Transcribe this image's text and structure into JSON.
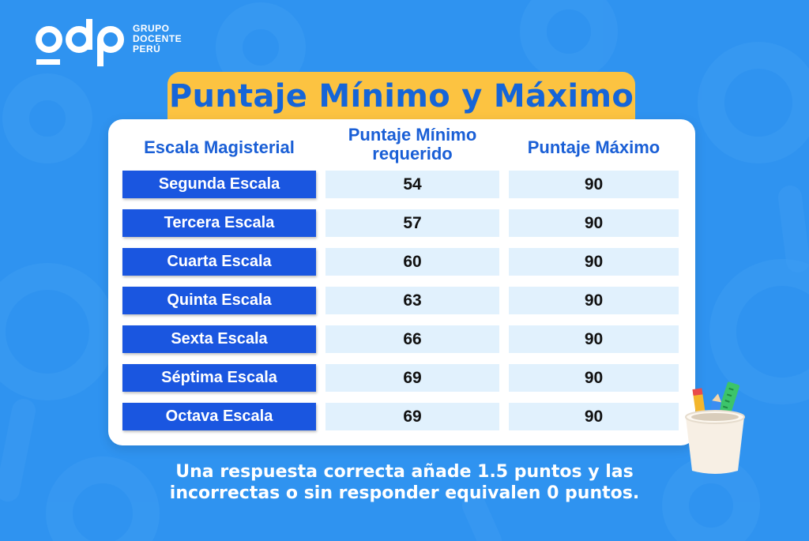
{
  "brand": {
    "logo_text": "odp",
    "tagline_lines": [
      "GRUPO",
      "DOCENTE",
      "PERÚ"
    ]
  },
  "title": "Puntaje Mínimo y Máximo",
  "table": {
    "headers": [
      "Escala Magisterial",
      "Puntaje  Mínimo requerido",
      "Puntaje Máximo"
    ],
    "rows": [
      {
        "escala": "Segunda Escala",
        "minimo": "54",
        "maximo": "90"
      },
      {
        "escala": "Tercera Escala",
        "minimo": "57",
        "maximo": "90"
      },
      {
        "escala": "Cuarta Escala",
        "minimo": "60",
        "maximo": "90"
      },
      {
        "escala": "Quinta Escala",
        "minimo": "63",
        "maximo": "90"
      },
      {
        "escala": "Sexta Escala",
        "minimo": "66",
        "maximo": "90"
      },
      {
        "escala": "Séptima Escala",
        "minimo": "69",
        "maximo": "90"
      },
      {
        "escala": "Octava Escala",
        "minimo": "69",
        "maximo": "90"
      }
    ]
  },
  "footer_lines": [
    "Una respuesta correcta añade 1.5 puntos y las",
    "incorrectas o sin responder equivalen 0 puntos."
  ],
  "colors": {
    "background": "#2f93f0",
    "banner": "#fcc341",
    "title_text": "#1565d8",
    "row_label": "#1a56e0",
    "row_value": "#e1f1fd"
  },
  "icons": [
    "odp-logo",
    "pencil-cup-icon"
  ]
}
